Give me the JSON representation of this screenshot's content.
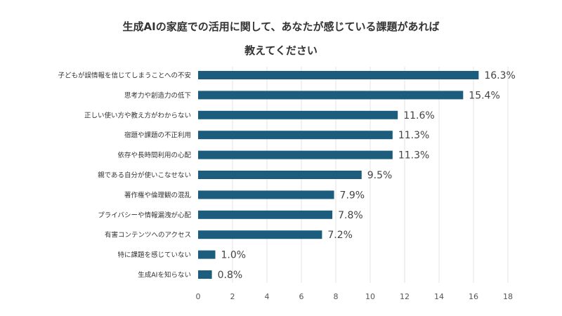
{
  "chart_data": {
    "type": "bar",
    "orientation": "horizontal",
    "title_lines": [
      "生成AIの家庭での活用に関して、あなたが感じている課題があれば",
      "教えてください"
    ],
    "categories": [
      "子どもが誤情報を信じてしまうことへの不安",
      "思考力や創造力の低下",
      "正しい使い方や教え方がわからない",
      "宿題や課題の不正利用",
      "依存や長時間利用の心配",
      "親である自分が使いこなせない",
      "著作権や倫理観の混乱",
      "プライバシーや情報漏洩が心配",
      "有害コンテンツへのアクセス",
      "特に課題を感じていない",
      "生成AIを知らない"
    ],
    "values": [
      16.3,
      15.4,
      11.6,
      11.3,
      11.3,
      9.5,
      7.9,
      7.8,
      7.2,
      1.0,
      0.8
    ],
    "data_labels": [
      "16.3%",
      "15.4%",
      "11.6%",
      "11.3%",
      "11.3%",
      "9.5%",
      "7.9%",
      "7.8%",
      "7.2%",
      "1.0%",
      "0.8%"
    ],
    "xlim": [
      0,
      18
    ],
    "xticks": [
      "0",
      "2",
      "4",
      "6",
      "8",
      "10",
      "12",
      "14",
      "16",
      "18"
    ],
    "grid": "vertical",
    "bar_color": "#1c5d7e",
    "xlabel": "",
    "ylabel": ""
  }
}
